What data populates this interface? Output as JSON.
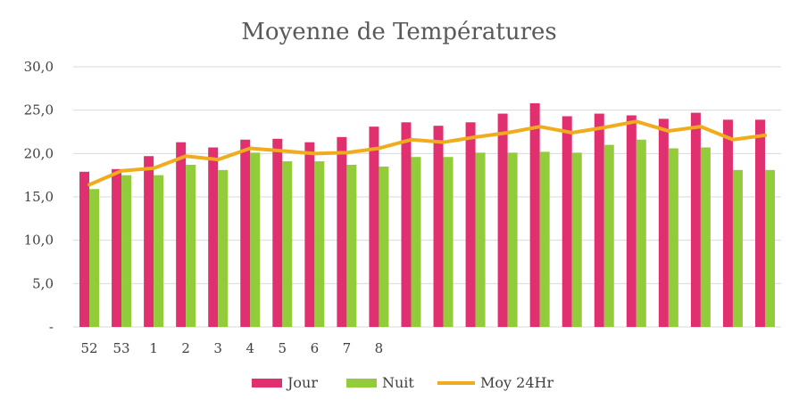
{
  "chart_data": {
    "type": "bar",
    "title": "Moyenne de Températures",
    "categories": [
      "52",
      "53",
      "1",
      "2",
      "3",
      "4",
      "5",
      "6",
      "7",
      "8",
      "",
      "",
      "",
      "",
      "",
      "",
      "",
      "",
      "",
      "",
      "",
      ""
    ],
    "series": [
      {
        "name": "Jour",
        "type": "bar",
        "color": "#e0306f",
        "values": [
          17.9,
          18.2,
          19.7,
          21.3,
          20.7,
          21.6,
          21.7,
          21.3,
          21.9,
          23.1,
          23.6,
          23.2,
          23.6,
          24.6,
          25.8,
          24.3,
          24.6,
          24.4,
          24.0,
          24.7,
          23.9,
          23.9
        ]
      },
      {
        "name": "Nuit",
        "type": "bar",
        "color": "#92cc3b",
        "values": [
          15.9,
          17.5,
          17.5,
          18.7,
          18.1,
          20.1,
          19.1,
          19.1,
          18.7,
          18.5,
          19.6,
          19.6,
          20.1,
          20.1,
          20.2,
          20.1,
          21.0,
          21.6,
          20.6,
          20.7,
          18.1,
          18.1
        ]
      },
      {
        "name": "Moy 24Hr",
        "type": "line",
        "color": "#f0ac1c",
        "values": [
          16.4,
          18.0,
          18.3,
          19.7,
          19.3,
          20.6,
          20.3,
          20.0,
          20.1,
          20.6,
          21.6,
          21.3,
          21.9,
          22.4,
          23.1,
          22.4,
          23.0,
          23.7,
          22.6,
          23.1,
          21.6,
          22.1
        ]
      }
    ],
    "y_ticks": [
      "-",
      "5,0",
      "10,0",
      "15,0",
      "20,0",
      "25,0",
      "30,0"
    ],
    "ylim": [
      0,
      30
    ],
    "grid": true,
    "legend": "bottom"
  }
}
